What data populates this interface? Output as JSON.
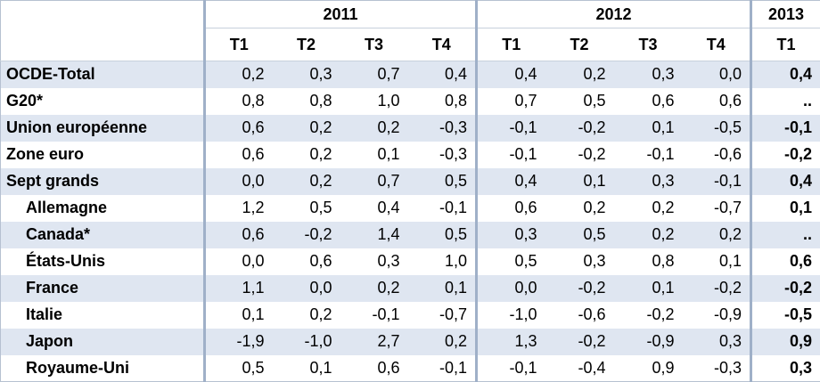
{
  "years": {
    "y2011": "2011",
    "y2012": "2012",
    "y2013": "2013"
  },
  "quarters": {
    "q2011": [
      "T1",
      "T2",
      "T3",
      "T4"
    ],
    "q2012": [
      "T1",
      "T2",
      "T3",
      "T4"
    ],
    "q2013": [
      "T1"
    ]
  },
  "rows": [
    {
      "label": "OCDE-Total",
      "values": [
        "0,2",
        "0,3",
        "0,7",
        "0,4",
        "0,4",
        "0,2",
        "0,3",
        "0,0",
        "0,4"
      ]
    },
    {
      "label": "G20*",
      "values": [
        "0,8",
        "0,8",
        "1,0",
        "0,8",
        "0,7",
        "0,5",
        "0,6",
        "0,6",
        ".."
      ]
    },
    {
      "label": "Union européenne",
      "values": [
        "0,6",
        "0,2",
        "0,2",
        "-0,3",
        "-0,1",
        "-0,2",
        "0,1",
        "-0,5",
        "-0,1"
      ]
    },
    {
      "label": "Zone euro",
      "values": [
        "0,6",
        "0,2",
        "0,1",
        "-0,3",
        "-0,1",
        "-0,2",
        "-0,1",
        "-0,6",
        "-0,2"
      ]
    },
    {
      "label": "Sept grands",
      "values": [
        "0,0",
        "0,2",
        "0,7",
        "0,5",
        "0,4",
        "0,1",
        "0,3",
        "-0,1",
        "0,4"
      ]
    },
    {
      "label": "Allemagne",
      "values": [
        "1,2",
        "0,5",
        "0,4",
        "-0,1",
        "0,6",
        "0,2",
        "0,2",
        "-0,7",
        "0,1"
      ]
    },
    {
      "label": "Canada*",
      "values": [
        "0,6",
        "-0,2",
        "1,4",
        "0,5",
        "0,3",
        "0,5",
        "0,2",
        "0,2",
        ".."
      ]
    },
    {
      "label": "États-Unis",
      "values": [
        "0,0",
        "0,6",
        "0,3",
        "1,0",
        "0,5",
        "0,3",
        "0,8",
        "0,1",
        "0,6"
      ]
    },
    {
      "label": "France",
      "values": [
        "1,1",
        "0,0",
        "0,2",
        "0,1",
        "0,0",
        "-0,2",
        "0,1",
        "-0,2",
        "-0,2"
      ]
    },
    {
      "label": "Italie",
      "values": [
        "0,1",
        "0,2",
        "-0,1",
        "-0,7",
        "-1,0",
        "-0,6",
        "-0,2",
        "-0,9",
        "-0,5"
      ]
    },
    {
      "label": "Japon",
      "values": [
        "-1,9",
        "-1,0",
        "2,7",
        "0,2",
        "1,3",
        "-0,2",
        "-0,9",
        "0,3",
        "0,9"
      ]
    },
    {
      "label": "Royaume-Uni",
      "values": [
        "0,5",
        "0,1",
        "0,6",
        "-0,1",
        "-0,1",
        "-0,4",
        "0,9",
        "-0,3",
        "0,3"
      ]
    }
  ],
  "colors": {
    "band": "#dfe6f1",
    "separator": "#9fb0c8"
  }
}
